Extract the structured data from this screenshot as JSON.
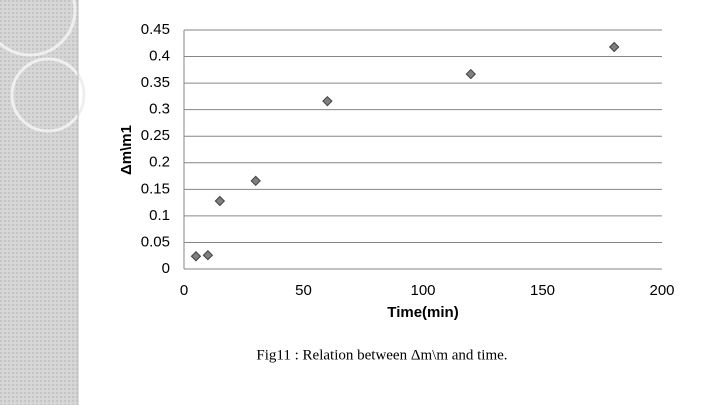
{
  "chart_data": {
    "type": "scatter",
    "caption": "Fig11 : Relation between Δm\\m and time.",
    "x_label": "Time(min)",
    "y_label": "Δm\\m1",
    "x": [
      5,
      10,
      15,
      30,
      60,
      120,
      180
    ],
    "series": [
      {
        "color": "#7f7f7f",
        "values": [
          0.024,
          0.026,
          0.128,
          0.166,
          0.316,
          0.367,
          0.418
        ]
      }
    ],
    "xlim": [
      0,
      200
    ],
    "xticks": [
      0,
      50,
      100,
      150,
      200
    ],
    "ylim": [
      0,
      0.45
    ],
    "yticks": [
      0,
      0.05,
      0.1,
      0.15,
      0.2,
      0.25,
      0.3,
      0.35,
      0.4,
      0.45
    ],
    "grid": true
  }
}
